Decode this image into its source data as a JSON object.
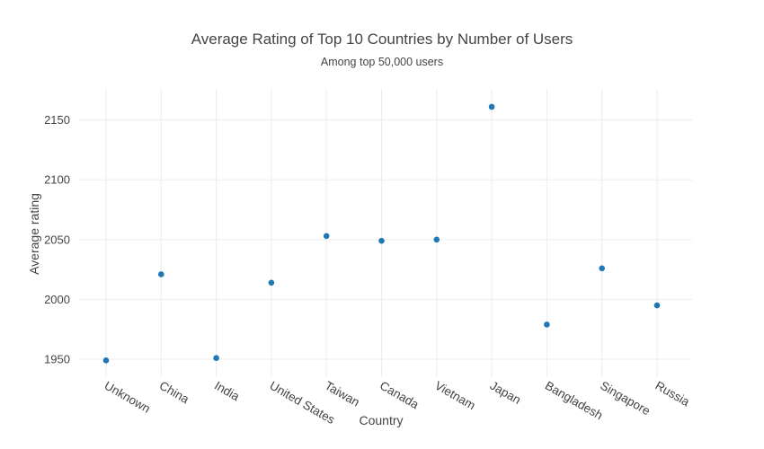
{
  "chart_data": {
    "type": "scatter",
    "title": "Average Rating of Top 10 Countries by Number of Users",
    "subtitle": "Among top 50,000 users",
    "xlabel": "Country",
    "ylabel": "Average rating",
    "categories": [
      "Unknown",
      "China",
      "India",
      "United States",
      "Taiwan",
      "Canada",
      "Vietnam",
      "Japan",
      "Bangladesh",
      "Singapore",
      "Russia"
    ],
    "values": [
      1949,
      2021,
      1951,
      2014,
      2053,
      2049,
      2050,
      2161,
      1979,
      2026,
      1995
    ],
    "yticks": [
      1950,
      2000,
      2050,
      2100,
      2150
    ],
    "ylim": [
      1935,
      2176
    ],
    "grid": true,
    "marker_color": "#1f77b4"
  }
}
